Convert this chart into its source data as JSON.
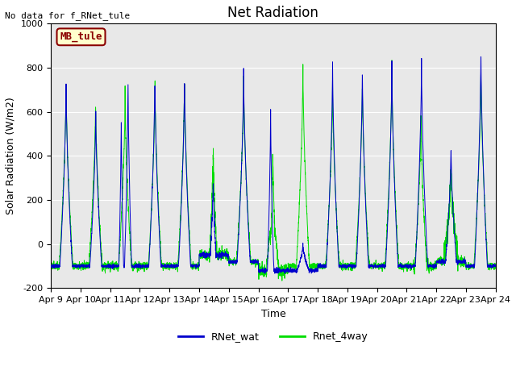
{
  "title": "Net Radiation",
  "xlabel": "Time",
  "ylabel": "Solar Radiation (W/m2)",
  "text_no_data": "No data for f_RNet_tule",
  "legend_label": "MB_tule",
  "ylim": [
    -200,
    1000
  ],
  "x_tick_labels": [
    "Apr 9",
    "Apr 10",
    "Apr 11",
    "Apr 12",
    "Apr 13",
    "Apr 14",
    "Apr 15",
    "Apr 16",
    "Apr 17",
    "Apr 18",
    "Apr 19",
    "Apr 20",
    "Apr 21",
    "Apr 22",
    "Apr 23",
    "Apr 24"
  ],
  "line1_color": "#0000cc",
  "line2_color": "#00dd00",
  "line1_label": "RNet_wat",
  "line2_label": "Rnet_4way",
  "bg_color": "#e8e8e8",
  "legend_box_facecolor": "#ffffcc",
  "legend_box_edgecolor": "#8b0000",
  "legend_text_color": "#8b0000",
  "yticks": [
    -200,
    0,
    200,
    400,
    600,
    800,
    1000
  ],
  "grid_color": "#ffffff",
  "title_fontsize": 12,
  "axis_label_fontsize": 9,
  "tick_fontsize": 8
}
